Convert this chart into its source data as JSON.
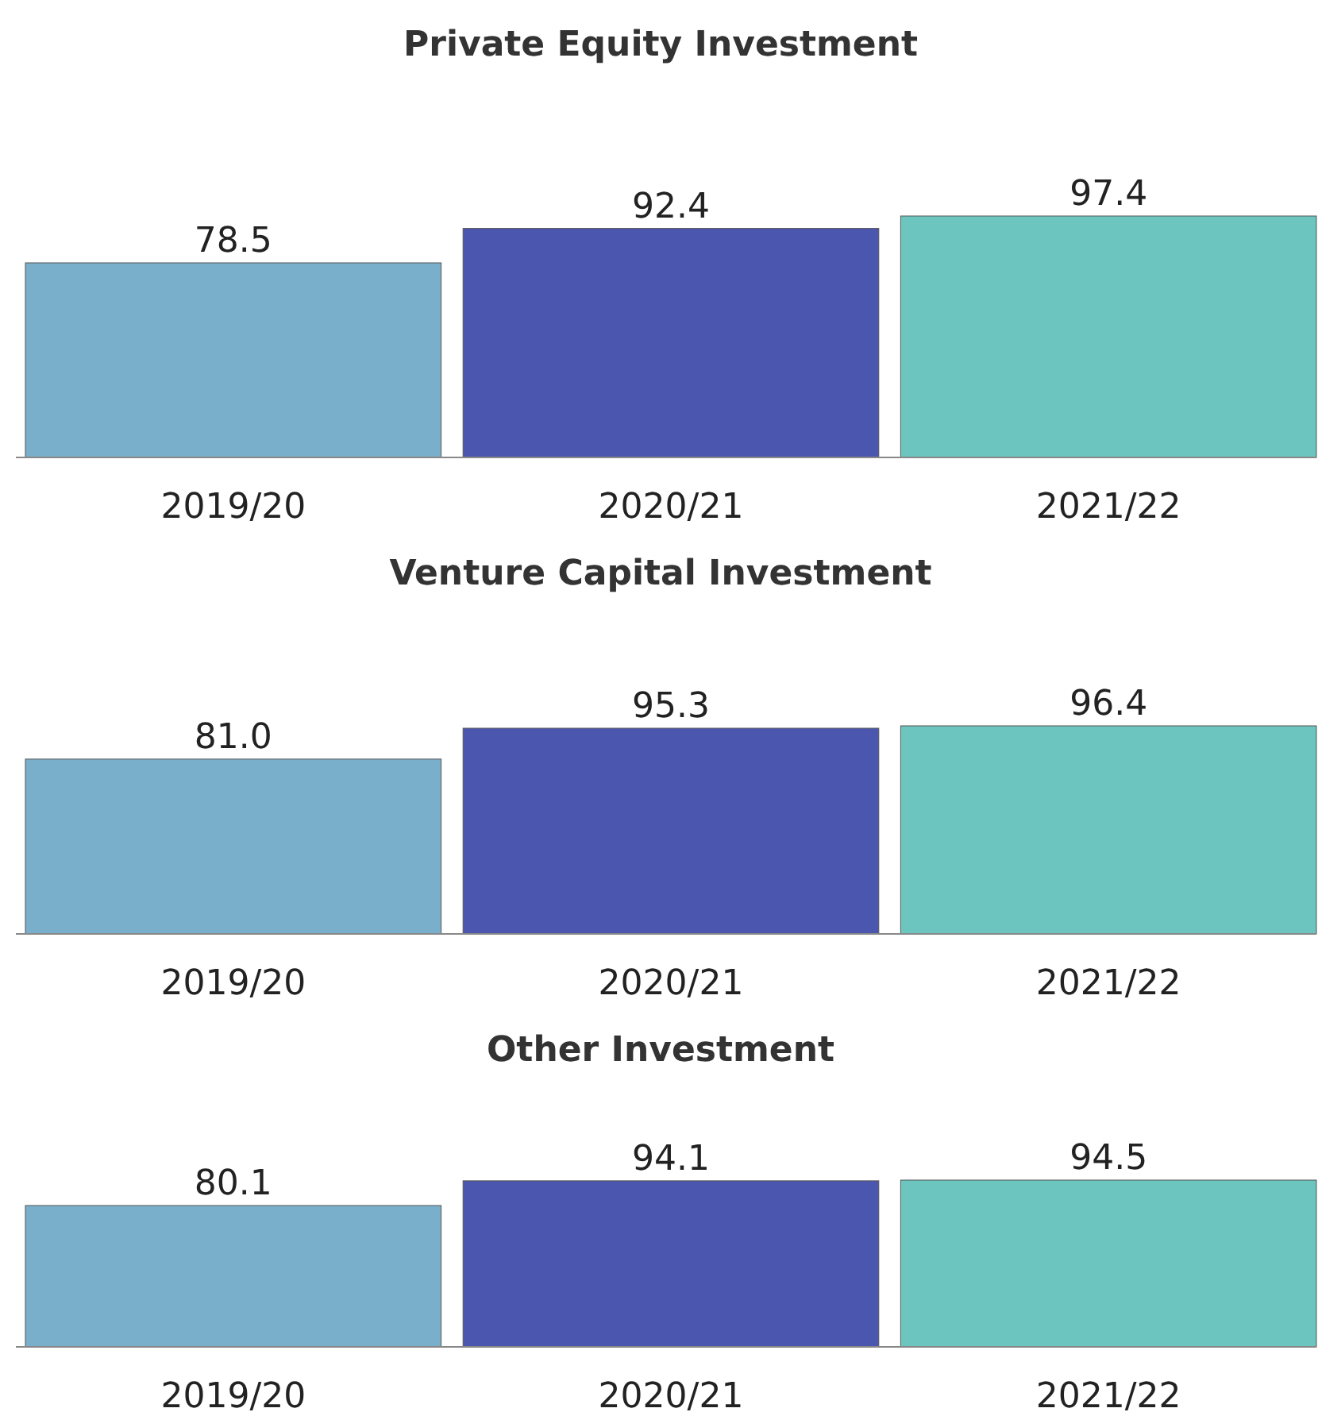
{
  "chart_data": [
    {
      "type": "bar",
      "title": "Private Equity Investment",
      "categories": [
        "2019/20",
        "2020/21",
        "2021/22"
      ],
      "values": [
        78.5,
        92.4,
        97.4
      ],
      "value_labels": [
        "78.5",
        "92.4",
        "97.4"
      ],
      "colors": [
        "#7aafcb",
        "#4b56ae",
        "#6cc5be"
      ],
      "tick_labels": "x"
    },
    {
      "type": "bar",
      "title": "Venture Capital Investment",
      "categories": [
        "2019/20",
        "2020/21",
        "2021/22"
      ],
      "values": [
        81.0,
        95.3,
        96.4
      ],
      "value_labels": [
        "81.0",
        "95.3",
        "96.4"
      ],
      "colors": [
        "#7aafcb",
        "#4b56ae",
        "#6cc5be"
      ],
      "tick_labels": "x"
    },
    {
      "type": "bar",
      "title": "Other Investment",
      "categories": [
        "2019/20",
        "2020/21",
        "2021/22"
      ],
      "values": [
        80.1,
        94.1,
        94.5
      ],
      "value_labels": [
        "80.1",
        "94.1",
        "94.5"
      ],
      "colors": [
        "#7aafcb",
        "#4b56ae",
        "#6cc5be"
      ],
      "tick_labels": "x"
    }
  ]
}
